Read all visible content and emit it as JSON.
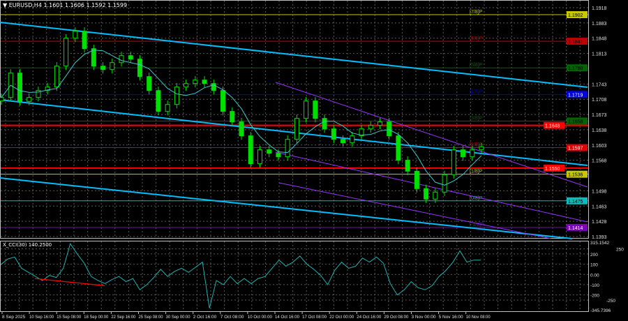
{
  "header": {
    "symbol": "EURUSD,H4",
    "quote": "1.1601 1.1606 1.1592 1.1599",
    "menu_icon": "triangle-down-icon"
  },
  "chart_data": [
    {
      "type": "candlestick",
      "title": "EURUSD,H4",
      "ylim": [
        1.1393,
        1.1918
      ],
      "grid": true,
      "price_ticks": [
        "1.1918",
        "1.1883",
        "1.1848",
        "1.1813",
        "1.1743",
        "1.1708",
        "1.1673",
        "1.1638",
        "1.1603",
        "1.1568",
        "1.1498",
        "1.1463",
        "1.1428",
        "1.1393"
      ],
      "time_ticks": [
        "8 Sep 2025",
        "10 Sep 16:00",
        "15 Sep 08:00",
        "18 Sep 00:00",
        "22 Sep 16:00",
        "25 Sep 08:00",
        "30 Sep 00:00",
        "2 Oct 16:00",
        "7 Oct 08:00",
        "10 Oct 00:00",
        "14 Oct 16:00",
        "17 Oct 08:00",
        "22 Oct 00:00",
        "24 Oct 16:00",
        "29 Oct 08:00",
        "3 Nov 00:00",
        "5 Nov 16:00",
        "10 Nov 08:00"
      ],
      "closes": [
        1.1712,
        1.1768,
        1.1703,
        1.1712,
        1.1728,
        1.1736,
        1.1784,
        1.1848,
        1.1864,
        1.1824,
        1.1784,
        1.1776,
        1.1792,
        1.1808,
        1.18,
        1.176,
        1.1728,
        1.168,
        1.1696,
        1.1736,
        1.1744,
        1.1752,
        1.1744,
        1.1728,
        1.168,
        1.1656,
        1.1624,
        1.156,
        1.1592,
        1.1584,
        1.1576,
        1.1616,
        1.1664,
        1.1704,
        1.1664,
        1.164,
        1.1616,
        1.1608,
        1.1624,
        1.164,
        1.1648,
        1.1656,
        1.1624,
        1.1568,
        1.1543,
        1.1503,
        1.1479,
        1.1495,
        1.1535,
        1.1592,
        1.1576,
        1.1592,
        1.1599
      ],
      "moving_average_color": "#40c8c8",
      "candle_color": "#00e000",
      "levels": [
        {
          "label": "[7/8]P",
          "value": "1.1902",
          "color": "#c8c800",
          "tag_text": "#000"
        },
        {
          "label": "[6/8]P",
          "value": "1.1841",
          "color": "#c00000",
          "tag_text": "#000"
        },
        {
          "label": "[5/8]P",
          "value": "1.1780",
          "color": "#006400",
          "tag_text": "#000"
        },
        {
          "label": "[4/8]P",
          "value": "1.1719",
          "color": "#0000e0",
          "tag_text": "#fff"
        },
        {
          "label": "[3/8]P",
          "value": "1.1658",
          "color": "#006400",
          "tag_text": "#000"
        },
        {
          "label": "[2/8]P",
          "value": "1.1597",
          "color": "#e00000",
          "tag_text": "#fff"
        },
        {
          "label": "[1/8]P",
          "value": "1.1536",
          "color": "#c8c800",
          "tag_text": "#000"
        },
        {
          "label": "[0/8]P",
          "value": "1.1475",
          "color": "#00c0c0",
          "tag_text": "#000"
        },
        {
          "label": "[-1/8]P",
          "value": "1.1414",
          "color": "#8000c0",
          "tag_text": "#fff"
        }
      ],
      "key_levels": [
        {
          "value": "1.1648",
          "color": "#ff0000"
        },
        {
          "value": "1.1550",
          "color": "#ff0000"
        }
      ],
      "channel_color": "#00bfff",
      "regression_channel_color": "#9933ff"
    },
    {
      "type": "line",
      "title": "X_CCI(30) 140.2500",
      "ylim": [
        -345.7396,
        315.1542
      ],
      "ticks": [
        "315.1542",
        "250",
        "200",
        "100",
        "0.00",
        "-100",
        "-200",
        "-250",
        "-345.7396"
      ],
      "values": [
        95,
        150,
        170,
        60,
        20,
        -20,
        -60,
        -10,
        -30,
        60,
        300,
        200,
        110,
        -20,
        -60,
        -90,
        -50,
        -20,
        -70,
        -40,
        -150,
        -100,
        -30,
        50,
        -20,
        30,
        60,
        20,
        70,
        120,
        -330,
        -60,
        -100,
        -20,
        -90,
        -40,
        -90,
        -40,
        -20,
        60,
        140,
        80,
        120,
        180,
        100,
        50,
        -10,
        -100,
        40,
        120,
        60,
        80,
        160,
        120,
        170,
        110,
        -90,
        -200,
        -150,
        -70,
        -130,
        -150,
        -110,
        -20,
        40,
        120,
        230,
        120,
        140,
        140
      ],
      "line_color": "#20b0b0",
      "divergence_color": "#ff0000"
    }
  ]
}
